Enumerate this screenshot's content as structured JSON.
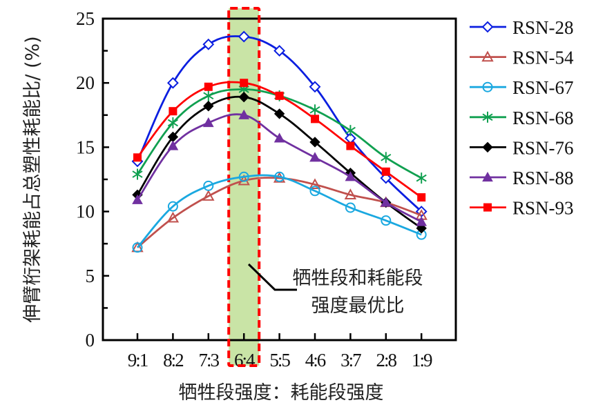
{
  "chart_data": {
    "type": "line",
    "title": "",
    "xlabel": "牺牲段强度：耗能段强度",
    "ylabel": "伸臂桁架耗能占总塑性耗能比/ (%)",
    "ylim": [
      0,
      25
    ],
    "yticks": [
      0,
      5,
      10,
      15,
      20,
      25
    ],
    "categories": [
      "9:1",
      "8:2",
      "7:3",
      "6:4",
      "5:5",
      "4:6",
      "3:7",
      "2:8",
      "1:9"
    ],
    "grid": false,
    "legend_position": "right",
    "series": [
      {
        "name": "RSN-28",
        "color": "#0a1ee0",
        "marker": "diamond-open",
        "values": [
          13.9,
          20.0,
          23.0,
          23.6,
          22.5,
          19.7,
          15.7,
          12.6,
          10.0
        ]
      },
      {
        "name": "RSN-54",
        "color": "#c0504d",
        "marker": "triangle-open",
        "values": [
          7.2,
          9.5,
          11.2,
          12.4,
          12.6,
          12.1,
          11.3,
          10.7,
          9.7
        ]
      },
      {
        "name": "RSN-67",
        "color": "#1aa8e0",
        "marker": "circle-open",
        "values": [
          7.2,
          10.4,
          12.0,
          12.7,
          12.7,
          11.6,
          10.3,
          9.3,
          8.2
        ]
      },
      {
        "name": "RSN-68",
        "color": "#10a050",
        "marker": "asterisk",
        "values": [
          12.9,
          16.9,
          19.0,
          19.5,
          19.0,
          17.9,
          16.3,
          14.2,
          12.6
        ]
      },
      {
        "name": "RSN-76",
        "color": "#000000",
        "marker": "diamond-filled",
        "values": [
          11.3,
          15.8,
          18.2,
          18.9,
          17.6,
          15.4,
          13.0,
          10.7,
          8.7
        ]
      },
      {
        "name": "RSN-88",
        "color": "#7030a0",
        "marker": "triangle-filled",
        "values": [
          10.9,
          15.1,
          16.9,
          17.5,
          15.7,
          14.2,
          12.7,
          10.7,
          9.2
        ]
      },
      {
        "name": "RSN-93",
        "color": "#ff0000",
        "marker": "square-filled",
        "values": [
          14.2,
          17.8,
          19.7,
          20.0,
          19.0,
          17.2,
          15.1,
          13.1,
          11.1
        ]
      }
    ],
    "highlight": {
      "category": "6:4",
      "fill": "#c9e4a6",
      "border": "#ff0000",
      "annotation_lines": [
        "牺牲段和耗能段",
        "强度最优比"
      ]
    }
  }
}
